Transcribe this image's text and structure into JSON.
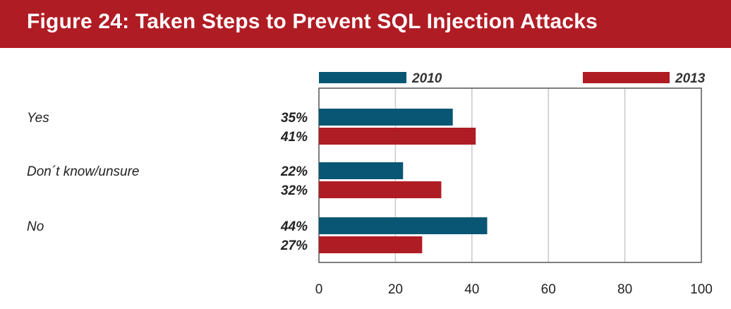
{
  "header": {
    "title": "Figure 24:  Taken Steps to Prevent SQL Injection Attacks"
  },
  "colors": {
    "header_bg": "#b01c24",
    "series_2010": "#085673",
    "series_2013": "#b01c24",
    "grid": "#c8c8c8"
  },
  "chart_data": {
    "type": "bar",
    "orientation": "horizontal",
    "title": "Figure 24:  Taken Steps to Prevent SQL Injection Attacks",
    "categories": [
      "Yes",
      "Don´t know/unsure",
      "No"
    ],
    "series": [
      {
        "name": "2010",
        "values": [
          35,
          22,
          44
        ],
        "labels": [
          "35%",
          "22%",
          "44%"
        ]
      },
      {
        "name": "2013",
        "values": [
          41,
          32,
          27
        ],
        "labels": [
          "41%",
          "32%",
          "27%"
        ]
      }
    ],
    "xlim": [
      0,
      100
    ],
    "xticks": [
      "0",
      "20",
      "40",
      "60",
      "80",
      "100"
    ],
    "xlabel": "",
    "ylabel": "",
    "grid": true,
    "legend_position": "top"
  }
}
